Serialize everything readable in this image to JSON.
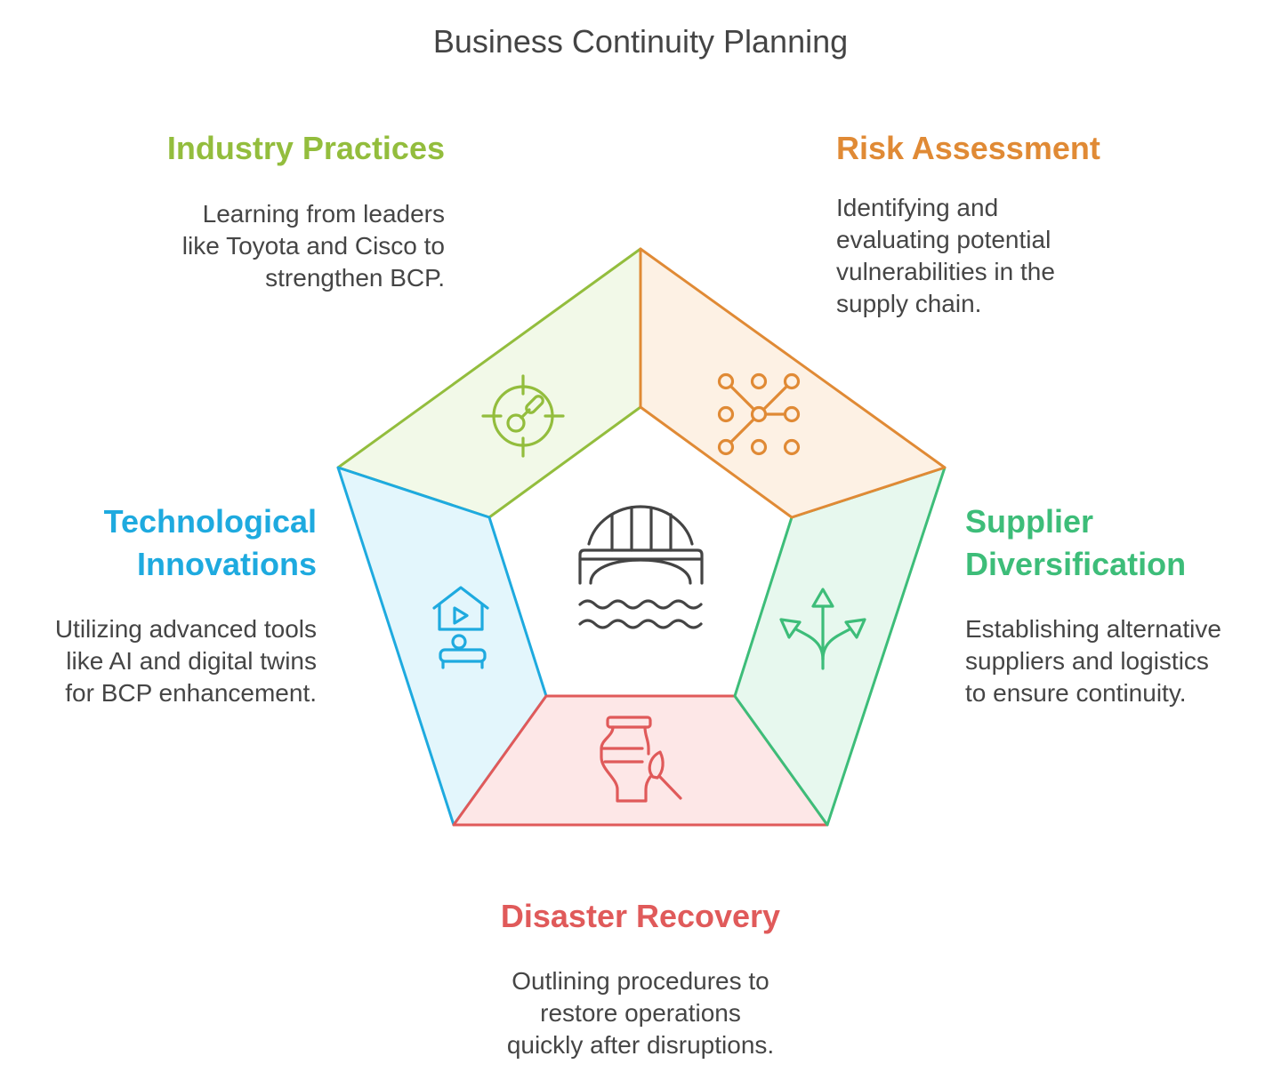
{
  "title": "Business Continuity Planning",
  "text_color": "#444444",
  "center_icon": "bridge-icon",
  "segments": {
    "industry_practices": {
      "heading": [
        "Industry Practices"
      ],
      "description": [
        "Learning from leaders",
        "like Toyota and Cisco to",
        "strengthen BCP."
      ],
      "color": "#93bd3d",
      "fill": "#f2f9e8",
      "icon": "target-gauge-icon"
    },
    "risk_assessment": {
      "heading": [
        "Risk Assessment"
      ],
      "description": [
        "Identifying and",
        "evaluating potential",
        "vulnerabilities in the",
        "supply chain."
      ],
      "color": "#e08a35",
      "fill": "#fdf1e4",
      "icon": "network-nodes-icon"
    },
    "supplier_diversification": {
      "heading": [
        "Supplier",
        "Diversification"
      ],
      "description": [
        "Establishing alternative",
        "suppliers and logistics",
        "to ensure continuity."
      ],
      "color": "#3dbd79",
      "fill": "#e7f8ee",
      "icon": "branching-arrows-icon"
    },
    "disaster_recovery": {
      "heading": [
        "Disaster Recovery"
      ],
      "description": [
        "Outlining procedures to",
        "restore operations",
        "quickly after disruptions."
      ],
      "color": "#e05a5a",
      "fill": "#fde7e7",
      "icon": "vase-brush-icon"
    },
    "technological_innovations": {
      "heading": [
        "Technological",
        "Innovations"
      ],
      "description": [
        "Utilizing advanced tools",
        "like AI and digital twins",
        "for BCP enhancement."
      ],
      "color": "#1eaadf",
      "fill": "#e3f6fc",
      "icon": "house-play-icon"
    }
  }
}
